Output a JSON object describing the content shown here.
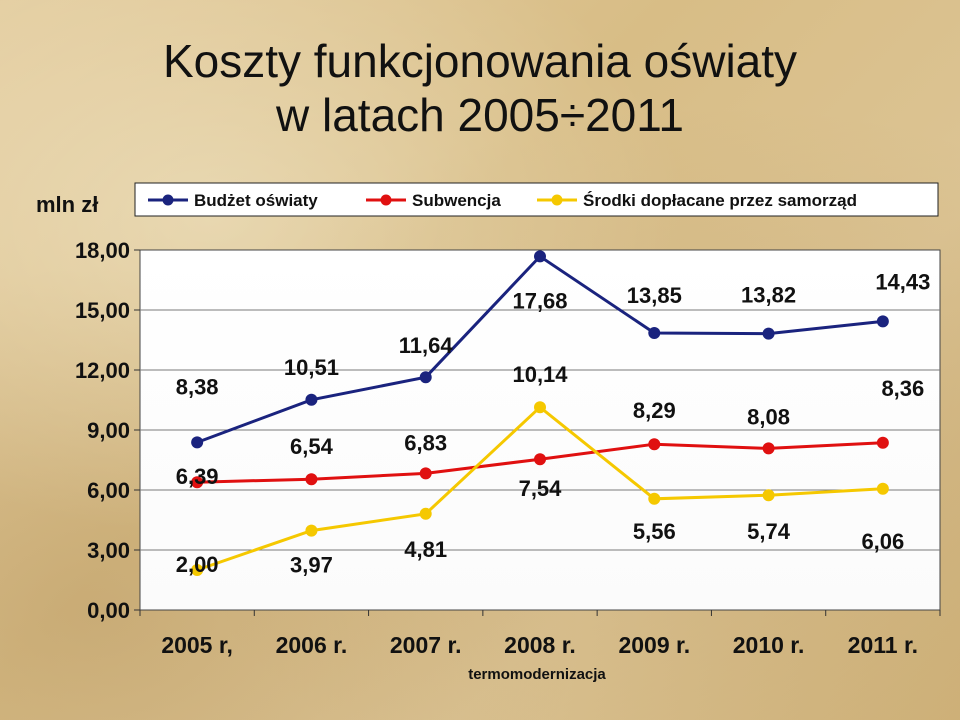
{
  "title": {
    "line1": "Koszty funkcjonowania oświaty",
    "line2": "w latach 2005÷2011"
  },
  "chart_data": {
    "type": "line",
    "ylabel": "mln zł",
    "xlabel": "termomodernizacja",
    "ylim": [
      0,
      18
    ],
    "yticks": [
      "0,00",
      "3,00",
      "6,00",
      "9,00",
      "12,00",
      "15,00",
      "18,00"
    ],
    "categories": [
      "2005 r,",
      "2006 r.",
      "2007 r.",
      "2008 r.",
      "2009 r.",
      "2010 r.",
      "2011 r."
    ],
    "grid": true,
    "legend_position": "top",
    "series": [
      {
        "name": "Budżet oświaty",
        "color": "#1a237e",
        "values": [
          8.38,
          10.51,
          11.64,
          17.68,
          13.85,
          13.82,
          14.43
        ],
        "labels": [
          "8,38",
          "10,51",
          "11,64",
          "17,68",
          "13,85",
          "13,82",
          "14,43"
        ]
      },
      {
        "name": "Subwencja",
        "color": "#e01010",
        "values": [
          6.39,
          6.54,
          6.83,
          7.54,
          8.29,
          8.08,
          8.36
        ],
        "labels": [
          "6,39",
          "6,54",
          "6,83",
          "7,54",
          "8,29",
          "8,08",
          "8,36"
        ]
      },
      {
        "name": "Środki dopłacane przez samorząd",
        "color": "#f5c800",
        "values": [
          2.0,
          3.97,
          4.81,
          10.14,
          5.56,
          5.74,
          6.06
        ],
        "labels": [
          "2,00",
          "3,97",
          "4,81",
          "10,14",
          "5,56",
          "5,74",
          "6,06"
        ]
      }
    ]
  }
}
